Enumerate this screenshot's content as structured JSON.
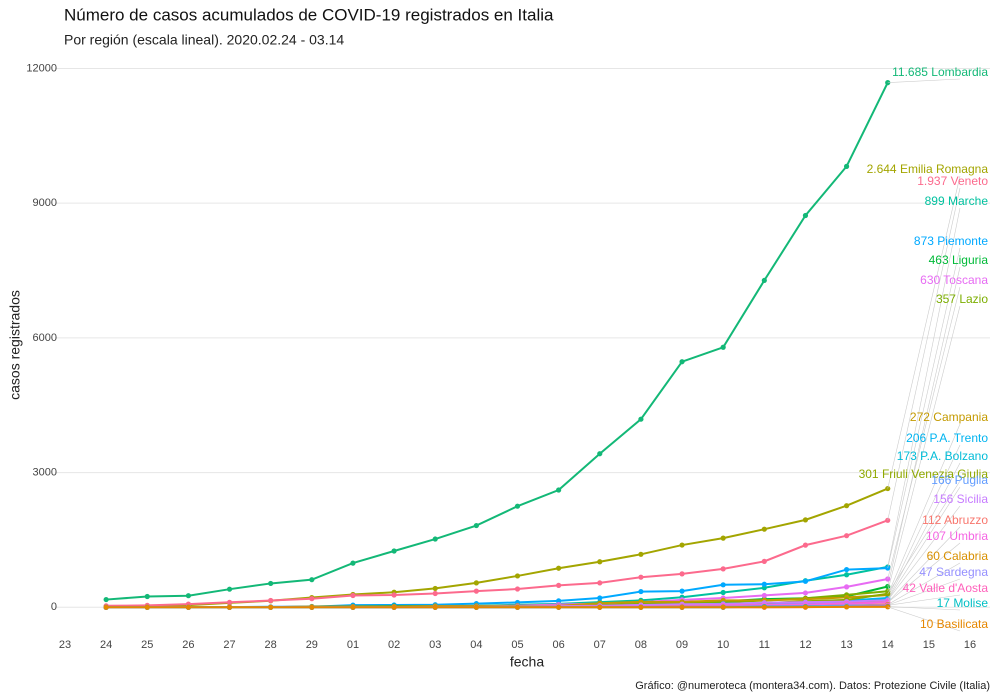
{
  "chart_data": {
    "type": "line",
    "title": "Número de casos acumulados de COVID-19 registrados en Italia",
    "subtitle": "Por región (escala lineal). 2020.02.24 - 03.14",
    "x_label": "fecha",
    "y_label": "casos registrados",
    "caption": "Gráfico: @numeroteca (montera34.com). Datos: Protezione Civile (Italia)",
    "categories": [
      "23",
      "24",
      "25",
      "26",
      "27",
      "28",
      "29",
      "01",
      "02",
      "03",
      "04",
      "05",
      "06",
      "07",
      "08",
      "09",
      "10",
      "11",
      "12",
      "13",
      "14",
      "15",
      "16"
    ],
    "ylim": [
      -350,
      12300
    ],
    "yticks": [
      0,
      3000,
      6000,
      9000,
      12000
    ],
    "grid": true,
    "series": [
      {
        "name": "Lombardia",
        "value_label": "11.685",
        "color": "#13b877",
        "values": [
          null,
          172,
          240,
          258,
          403,
          531,
          615,
          984,
          1254,
          1520,
          1820,
          2251,
          2612,
          3420,
          4189,
          5469,
          5791,
          7280,
          8725,
          9820,
          11685,
          null,
          null
        ]
      },
      {
        "name": "Emilia Romagna",
        "value_label": "2.644",
        "color": "#a3a500",
        "values": [
          null,
          18,
          26,
          47,
          97,
          145,
          217,
          285,
          335,
          420,
          544,
          698,
          870,
          1014,
          1180,
          1386,
          1540,
          1739,
          1947,
          2263,
          2644,
          null,
          null
        ]
      },
      {
        "name": "Veneto",
        "value_label": "1.937",
        "color": "#fc6a8d",
        "values": [
          null,
          33,
          43,
          71,
          111,
          151,
          191,
          263,
          273,
          307,
          360,
          407,
          488,
          543,
          670,
          744,
          856,
          1023,
          1384,
          1595,
          1937,
          null,
          null
        ]
      },
      {
        "name": "Marche",
        "value_label": "899",
        "color": "#00c19f",
        "values": [
          null,
          0,
          0,
          0,
          0,
          1,
          3,
          5,
          8,
          27,
          32,
          57,
          77,
          116,
          154,
          224,
          329,
          434,
          592,
          725,
          899,
          null,
          null
        ]
      },
      {
        "name": "Piemonte",
        "value_label": "873",
        "color": "#00a9ff",
        "values": [
          null,
          3,
          3,
          3,
          3,
          11,
          11,
          49,
          51,
          56,
          82,
          108,
          143,
          207,
          350,
          360,
          501,
          513,
          578,
          840,
          873,
          null,
          null
        ]
      },
      {
        "name": "Liguria",
        "value_label": "463",
        "color": "#00ba38",
        "values": [
          null,
          0,
          0,
          0,
          1,
          1,
          19,
          20,
          25,
          25,
          26,
          27,
          21,
          62,
          62,
          112,
          133,
          182,
          200,
          243,
          463,
          null,
          null
        ]
      },
      {
        "name": "Toscana",
        "value_label": "630",
        "color": "#e76bf3",
        "values": [
          null,
          0,
          2,
          2,
          2,
          5,
          11,
          13,
          13,
          18,
          19,
          38,
          61,
          81,
          115,
          166,
          208,
          264,
          320,
          454,
          630,
          null,
          null
        ]
      },
      {
        "name": "Lazio",
        "value_label": "357",
        "color": "#7cae00",
        "values": [
          null,
          3,
          3,
          3,
          3,
          3,
          6,
          6,
          6,
          6,
          11,
          22,
          30,
          45,
          76,
          102,
          116,
          150,
          200,
          277,
          357,
          null,
          null
        ]
      },
      {
        "name": "Campania",
        "value_label": "272",
        "color": "#c49a00",
        "values": [
          null,
          0,
          0,
          3,
          3,
          4,
          13,
          17,
          17,
          30,
          31,
          31,
          31,
          91,
          120,
          120,
          154,
          154,
          179,
          220,
          272,
          null,
          null
        ]
      },
      {
        "name": "P.A. Trento",
        "value_label": "206",
        "color": "#00b4f0",
        "values": [
          null,
          0,
          0,
          0,
          0,
          0,
          1,
          1,
          4,
          5,
          6,
          6,
          9,
          14,
          35,
          50,
          80,
          93,
          120,
          147,
          206,
          null,
          null
        ]
      },
      {
        "name": "P.A. Bolzano",
        "value_label": "173",
        "color": "#00bcd8",
        "values": [
          null,
          0,
          0,
          1,
          1,
          1,
          1,
          1,
          1,
          1,
          2,
          8,
          9,
          21,
          28,
          38,
          46,
          64,
          94,
          120,
          173,
          null,
          null
        ]
      },
      {
        "name": "Friuli Venezia Giulia",
        "value_label": "301",
        "color": "#8fa800",
        "values": [
          null,
          0,
          0,
          0,
          0,
          0,
          0,
          9,
          9,
          12,
          12,
          18,
          18,
          22,
          41,
          56,
          66,
          93,
          134,
          165,
          301,
          null,
          null
        ]
      },
      {
        "name": "Puglia",
        "value_label": "166",
        "color": "#619cff",
        "values": [
          null,
          0,
          0,
          1,
          1,
          3,
          3,
          3,
          3,
          3,
          6,
          8,
          16,
          26,
          29,
          41,
          37,
          45,
          80,
          90,
          166,
          null,
          null
        ]
      },
      {
        "name": "Sicilia",
        "value_label": "156",
        "color": "#c77cff",
        "values": [
          null,
          0,
          1,
          1,
          2,
          2,
          4,
          7,
          7,
          8,
          9,
          18,
          26,
          35,
          52,
          68,
          72,
          102,
          116,
          126,
          156,
          null,
          null
        ]
      },
      {
        "name": "Abruzzo",
        "value_label": "112",
        "color": "#f8766d",
        "values": [
          null,
          0,
          0,
          0,
          1,
          1,
          1,
          2,
          5,
          5,
          7,
          7,
          9,
          9,
          11,
          30,
          38,
          38,
          52,
          84,
          112,
          null,
          null
        ]
      },
      {
        "name": "Umbria",
        "value_label": "107",
        "color": "#f564e3",
        "values": [
          null,
          0,
          0,
          0,
          0,
          0,
          0,
          0,
          0,
          2,
          3,
          4,
          9,
          13,
          16,
          25,
          43,
          50,
          61,
          81,
          107,
          null,
          null
        ]
      },
      {
        "name": "Calabria",
        "value_label": "60",
        "color": "#d89000",
        "values": [
          null,
          0,
          0,
          0,
          0,
          0,
          0,
          1,
          1,
          1,
          1,
          2,
          3,
          3,
          5,
          12,
          12,
          13,
          19,
          39,
          60,
          null,
          null
        ]
      },
      {
        "name": "Sardegna",
        "value_label": "47",
        "color": "#9590ff",
        "values": [
          null,
          0,
          0,
          0,
          0,
          0,
          0,
          0,
          0,
          1,
          1,
          2,
          4,
          7,
          7,
          9,
          11,
          18,
          19,
          39,
          47,
          null,
          null
        ]
      },
      {
        "name": "Valle d'Aosta",
        "value_label": "42",
        "color": "#ff62bc",
        "values": [
          null,
          0,
          0,
          0,
          0,
          0,
          0,
          0,
          0,
          0,
          0,
          0,
          0,
          0,
          0,
          0,
          1,
          1,
          4,
          18,
          42,
          null,
          null
        ]
      },
      {
        "name": "Molise",
        "value_label": "17",
        "color": "#00bfc4",
        "values": [
          null,
          0,
          0,
          0,
          0,
          0,
          0,
          0,
          0,
          0,
          0,
          0,
          0,
          1,
          1,
          1,
          1,
          15,
          15,
          16,
          17,
          null,
          null
        ]
      },
      {
        "name": "Basilicata",
        "value_label": "10",
        "color": "#e58700",
        "values": [
          null,
          0,
          0,
          0,
          0,
          0,
          0,
          0,
          0,
          0,
          0,
          0,
          0,
          0,
          0,
          0,
          2,
          2,
          3,
          8,
          10,
          null,
          null
        ]
      }
    ]
  }
}
